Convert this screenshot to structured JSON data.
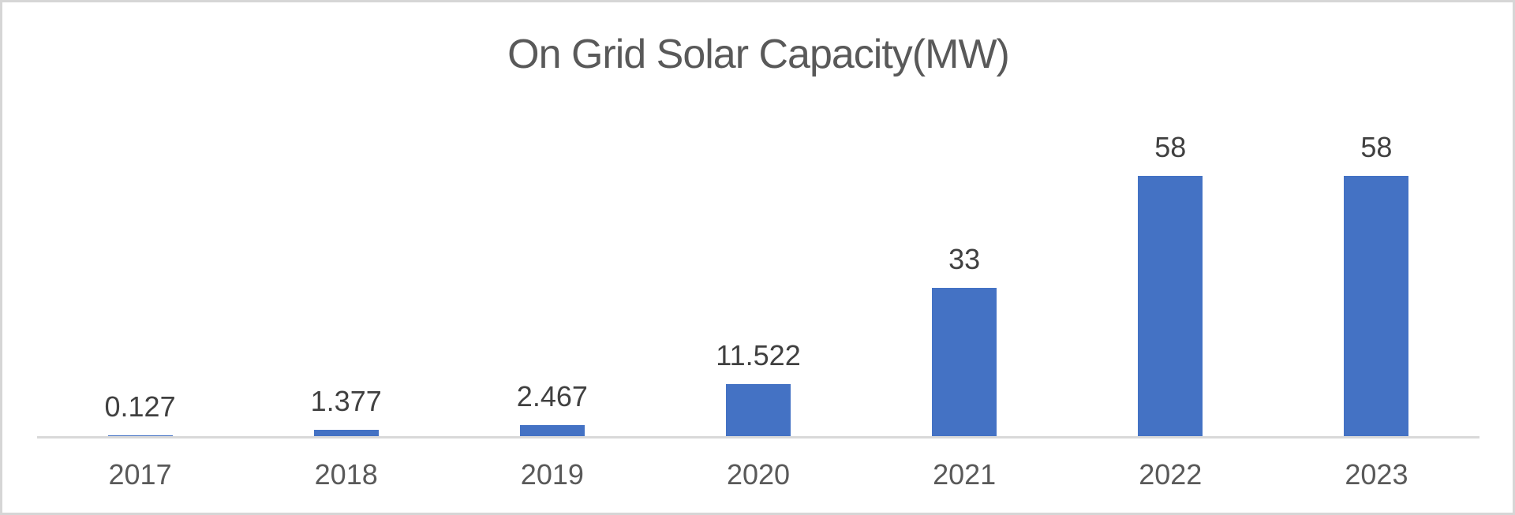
{
  "chart_data": {
    "type": "bar",
    "title": "On Grid Solar Capacity(MW)",
    "categories": [
      "2017",
      "2018",
      "2019",
      "2020",
      "2021",
      "2022",
      "2023"
    ],
    "values": [
      0.127,
      1.377,
      2.467,
      11.522,
      33,
      58,
      58
    ],
    "data_labels": [
      "0.127",
      "1.377",
      "2.467",
      "11.522",
      "33",
      "58",
      "58"
    ],
    "xlabel": "",
    "ylabel": "",
    "grid": false,
    "legend": false,
    "data_labels_position": "outside-end"
  },
  "theme": {
    "bar_color": "#4472C4",
    "title_color": "#595959",
    "data_label_color": "#404040",
    "axis_label_color": "#595959",
    "axis_line_color": "#D9D9D9",
    "border_color": "#D6D6D6",
    "background_color": "#FFFFFF"
  }
}
